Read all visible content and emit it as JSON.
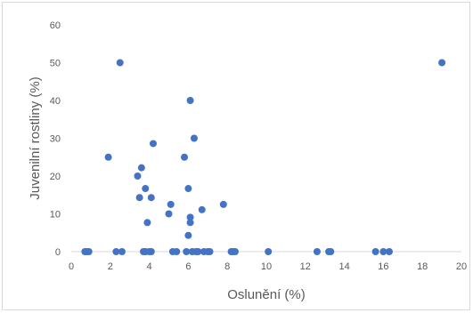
{
  "chart_data": {
    "type": "scatter",
    "title": "",
    "xlabel": "Oslunění (%)",
    "ylabel": "Juvenilní rostliny (%)",
    "xlim": [
      0,
      20
    ],
    "ylim": [
      0,
      60
    ],
    "xticks": [
      0,
      2,
      4,
      6,
      8,
      10,
      12,
      14,
      16,
      18,
      20
    ],
    "yticks": [
      0,
      10,
      20,
      30,
      40,
      50,
      60
    ],
    "grid": false,
    "legend": "none",
    "marker_color": "#4472c4",
    "points": [
      {
        "x": 0.7,
        "y": 0
      },
      {
        "x": 0.8,
        "y": 0
      },
      {
        "x": 0.9,
        "y": 0
      },
      {
        "x": 1.9,
        "y": 25
      },
      {
        "x": 2.3,
        "y": 0
      },
      {
        "x": 2.5,
        "y": 50
      },
      {
        "x": 2.6,
        "y": 0
      },
      {
        "x": 3.4,
        "y": 20
      },
      {
        "x": 3.5,
        "y": 14.3
      },
      {
        "x": 3.6,
        "y": 22.2
      },
      {
        "x": 3.7,
        "y": 0
      },
      {
        "x": 3.8,
        "y": 0
      },
      {
        "x": 3.8,
        "y": 16.7
      },
      {
        "x": 3.9,
        "y": 7.7
      },
      {
        "x": 4.0,
        "y": 0
      },
      {
        "x": 4.1,
        "y": 14.3
      },
      {
        "x": 4.1,
        "y": 0
      },
      {
        "x": 4.2,
        "y": 28.6
      },
      {
        "x": 5.0,
        "y": 10
      },
      {
        "x": 5.1,
        "y": 12.5
      },
      {
        "x": 5.2,
        "y": 0
      },
      {
        "x": 5.4,
        "y": 0
      },
      {
        "x": 5.8,
        "y": 25
      },
      {
        "x": 5.9,
        "y": 0
      },
      {
        "x": 6.0,
        "y": 4.3
      },
      {
        "x": 6.0,
        "y": 16.7
      },
      {
        "x": 6.1,
        "y": 7.7
      },
      {
        "x": 6.1,
        "y": 40
      },
      {
        "x": 6.1,
        "y": 9.1
      },
      {
        "x": 6.2,
        "y": 0
      },
      {
        "x": 6.3,
        "y": 30
      },
      {
        "x": 6.4,
        "y": 0
      },
      {
        "x": 6.5,
        "y": 0
      },
      {
        "x": 6.7,
        "y": 11.1
      },
      {
        "x": 6.8,
        "y": 0
      },
      {
        "x": 7.0,
        "y": 0
      },
      {
        "x": 7.1,
        "y": 0
      },
      {
        "x": 7.8,
        "y": 12.5
      },
      {
        "x": 8.2,
        "y": 0
      },
      {
        "x": 8.3,
        "y": 0
      },
      {
        "x": 8.4,
        "y": 0
      },
      {
        "x": 10.1,
        "y": 0
      },
      {
        "x": 12.6,
        "y": 0
      },
      {
        "x": 13.2,
        "y": 0
      },
      {
        "x": 13.3,
        "y": 0
      },
      {
        "x": 15.6,
        "y": 0
      },
      {
        "x": 16.0,
        "y": 0
      },
      {
        "x": 16.3,
        "y": 0
      },
      {
        "x": 19.0,
        "y": 50
      }
    ]
  }
}
